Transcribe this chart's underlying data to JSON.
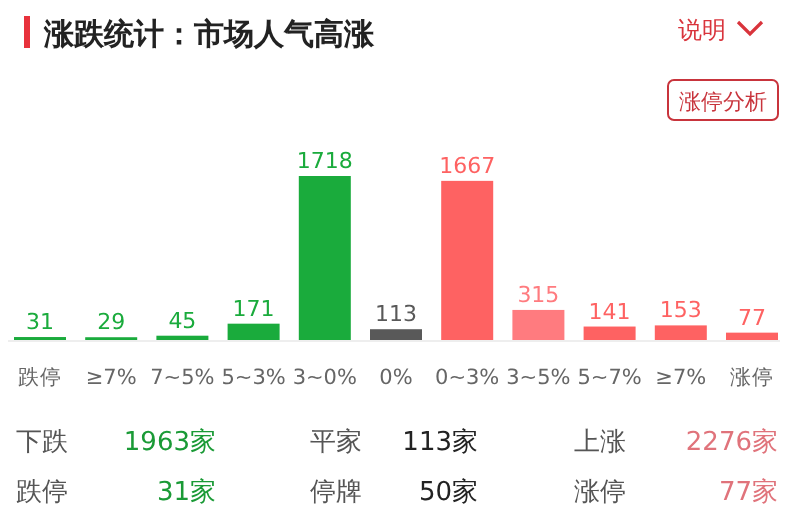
{
  "chart_data": {
    "type": "bar",
    "title": "涨跌统计：市场人气高涨",
    "categories": [
      "跌停",
      "≥7%",
      "7~5%",
      "5~3%",
      "3~0%",
      "0%",
      "0~3%",
      "3~5%",
      "5~7%",
      "≥7%",
      "涨停"
    ],
    "values": [
      31,
      29,
      45,
      171,
      1718,
      113,
      1667,
      315,
      141,
      153,
      77
    ],
    "colors": [
      "#1aab3c",
      "#1aab3c",
      "#1aab3c",
      "#1aab3c",
      "#1aab3c",
      "#595959",
      "#fe6262",
      "#ff7b7f",
      "#fe6262",
      "#fe6262",
      "#fe6262"
    ],
    "data_labels": true,
    "annotations": [
      "说明",
      "涨停分析",
      "下跌",
      "1963家",
      "平家",
      "113家",
      "上涨",
      "2276家",
      "跌停",
      "31家",
      "停牌",
      "50家",
      "涨停",
      "77家"
    ]
  }
}
